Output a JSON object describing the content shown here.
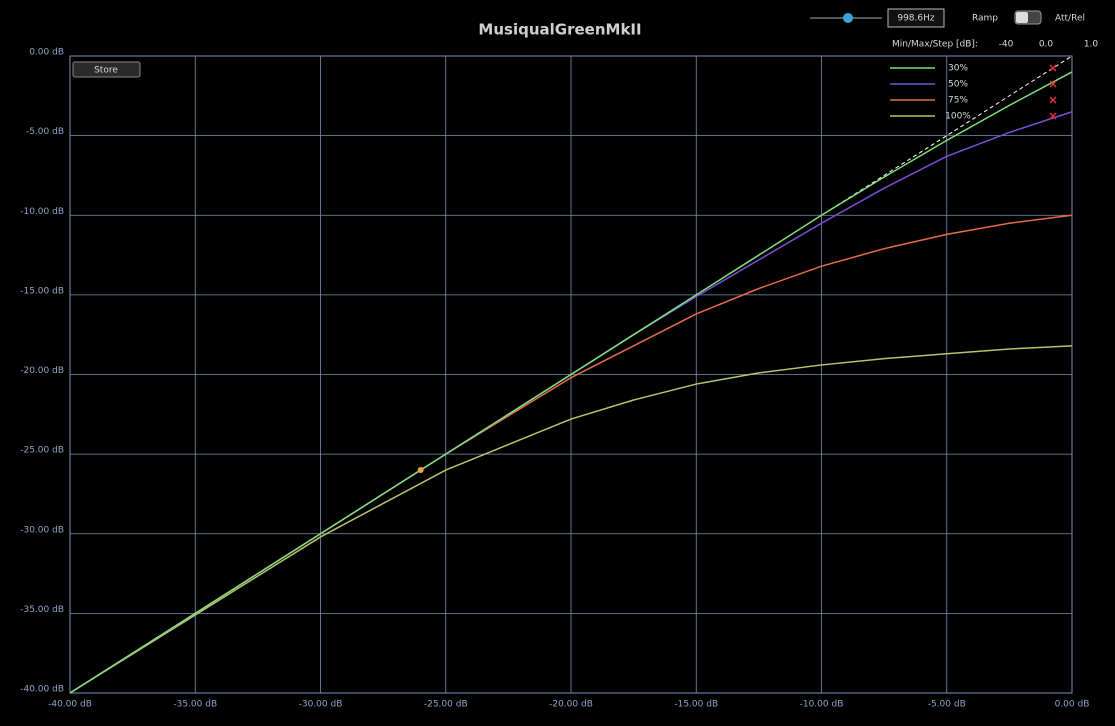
{
  "controls": {
    "frequency": "998.6Hz",
    "ramp_label": "Ramp",
    "mode_label": "Att/Rel",
    "range_label": "Min/Max/Step [dB]:",
    "min": "-40",
    "max": "0.0",
    "step": "1.0",
    "store_button": "Store"
  },
  "chart_data": {
    "type": "line",
    "title": "MusiqualGreenMkII",
    "x": [
      -40,
      -35,
      -30,
      -25,
      -20,
      -17.5,
      -15,
      -12.5,
      -10,
      -7.5,
      -5,
      -2.5,
      0
    ],
    "series": [
      {
        "name": "30%",
        "color": "#7ee07a",
        "values": [
          -40,
          -35,
          -30,
          -25,
          -20,
          -17.5,
          -15,
          -12.5,
          -10,
          -7.6,
          -5.3,
          -3.1,
          -1.0
        ]
      },
      {
        "name": "50%",
        "color": "#7d4fd6",
        "values": [
          -40,
          -35,
          -30,
          -25,
          -20,
          -17.5,
          -15.1,
          -12.8,
          -10.5,
          -8.3,
          -6.3,
          -4.8,
          -3.5
        ]
      },
      {
        "name": "75%",
        "color": "#e56a4a",
        "values": [
          -40,
          -35,
          -30,
          -25,
          -20.2,
          -18.2,
          -16.2,
          -14.6,
          -13.2,
          -12.1,
          -11.2,
          -10.5,
          -10.0
        ]
      },
      {
        "name": "100%",
        "color": "#b9c46a",
        "values": [
          -40,
          -35.1,
          -30.2,
          -26.0,
          -22.8,
          -21.6,
          -20.6,
          -19.9,
          -19.4,
          -19.0,
          -18.7,
          -18.4,
          -18.2
        ]
      }
    ],
    "reference_line": {
      "x": [
        -12,
        0
      ],
      "values": [
        -12,
        0
      ],
      "color": "#ffffff"
    },
    "marker": {
      "x": -26,
      "y": -26,
      "color": "#f2a33a"
    },
    "xlim": [
      -40,
      0
    ],
    "ylim": [
      -40,
      0
    ],
    "xticks": [
      {
        "value": -40,
        "label": "-40.00 dB"
      },
      {
        "value": -35,
        "label": "-35.00 dB"
      },
      {
        "value": -30,
        "label": "-30.00 dB"
      },
      {
        "value": -25,
        "label": "-25.00 dB"
      },
      {
        "value": -20,
        "label": "-20.00 dB"
      },
      {
        "value": -15,
        "label": "-15.00 dB"
      },
      {
        "value": -10,
        "label": "-10.00 dB"
      },
      {
        "value": -5,
        "label": "-5.00 dB"
      },
      {
        "value": 0,
        "label": "0.00 dB"
      }
    ],
    "yticks": [
      {
        "value": -40,
        "label": "-40.00 dB"
      },
      {
        "value": -35,
        "label": "-35.00 dB"
      },
      {
        "value": -30,
        "label": "-30.00 dB"
      },
      {
        "value": -25,
        "label": "-25.00 dB"
      },
      {
        "value": -20,
        "label": "-20.00 dB"
      },
      {
        "value": -15,
        "label": "-15.00 dB"
      },
      {
        "value": -10,
        "label": "-10.00 dB"
      },
      {
        "value": -5,
        "label": "-5.00 dB"
      },
      {
        "value": 0,
        "label": "0.00 dB"
      }
    ],
    "grid": true,
    "grid_color": "#7f90b8",
    "legend": "top-right"
  }
}
